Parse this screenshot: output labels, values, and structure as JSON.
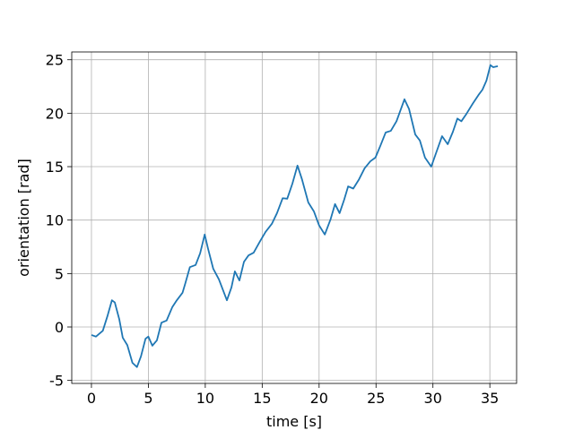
{
  "chart_data": {
    "type": "line",
    "xlabel": "time [s]",
    "ylabel": "orientation [rad]",
    "x": [
      0,
      0.4,
      1.0,
      1.4,
      1.8,
      2.05,
      2.45,
      2.75,
      3.15,
      3.6,
      4.0,
      4.35,
      4.75,
      5.0,
      5.35,
      5.75,
      6.15,
      6.6,
      7.1,
      7.5,
      8.0,
      8.25,
      8.65,
      9.15,
      9.55,
      9.95,
      10.25,
      10.7,
      11.2,
      11.9,
      12.3,
      12.6,
      13.0,
      13.4,
      13.8,
      14.25,
      14.8,
      15.3,
      15.85,
      16.3,
      16.8,
      17.2,
      17.65,
      18.1,
      18.5,
      19.05,
      19.55,
      20.0,
      20.5,
      21.0,
      21.4,
      21.8,
      22.2,
      22.55,
      23.0,
      23.5,
      24.0,
      24.5,
      24.95,
      25.4,
      25.85,
      26.3,
      26.8,
      27.5,
      27.9,
      28.45,
      28.85,
      29.3,
      29.85,
      30.35,
      30.8,
      31.3,
      31.75,
      32.15,
      32.5,
      32.95,
      33.5,
      34.0,
      34.35,
      34.7,
      35.05,
      35.3,
      35.7
    ],
    "values": [
      -0.75,
      -0.9,
      -0.35,
      1.0,
      2.5,
      2.3,
      0.7,
      -1.0,
      -1.7,
      -3.35,
      -3.75,
      -2.75,
      -1.1,
      -0.9,
      -1.75,
      -1.25,
      0.4,
      0.6,
      1.85,
      2.5,
      3.2,
      4.1,
      5.6,
      5.8,
      6.9,
      8.65,
      7.3,
      5.45,
      4.45,
      2.5,
      3.7,
      5.2,
      4.35,
      6.1,
      6.7,
      6.95,
      8.0,
      8.9,
      9.65,
      10.65,
      12.05,
      12.0,
      13.4,
      15.1,
      13.8,
      11.65,
      10.8,
      9.5,
      8.65,
      10.05,
      11.5,
      10.65,
      11.9,
      13.15,
      12.95,
      13.8,
      14.85,
      15.5,
      15.85,
      17.0,
      18.2,
      18.35,
      19.25,
      21.3,
      20.4,
      18.0,
      17.45,
      15.85,
      15.0,
      16.5,
      17.85,
      17.1,
      18.25,
      19.5,
      19.25,
      19.95,
      20.9,
      21.7,
      22.2,
      23.05,
      24.5,
      24.3,
      24.4
    ],
    "color": "#1f77b4",
    "xlim": [
      -1.73,
      37.35
    ],
    "xticks": [
      0,
      5,
      10,
      15,
      20,
      25,
      30,
      35
    ],
    "ylim": [
      -5.28,
      25.73
    ],
    "yticks": [
      -5,
      0,
      5,
      10,
      15,
      20,
      25
    ],
    "grid": true
  }
}
